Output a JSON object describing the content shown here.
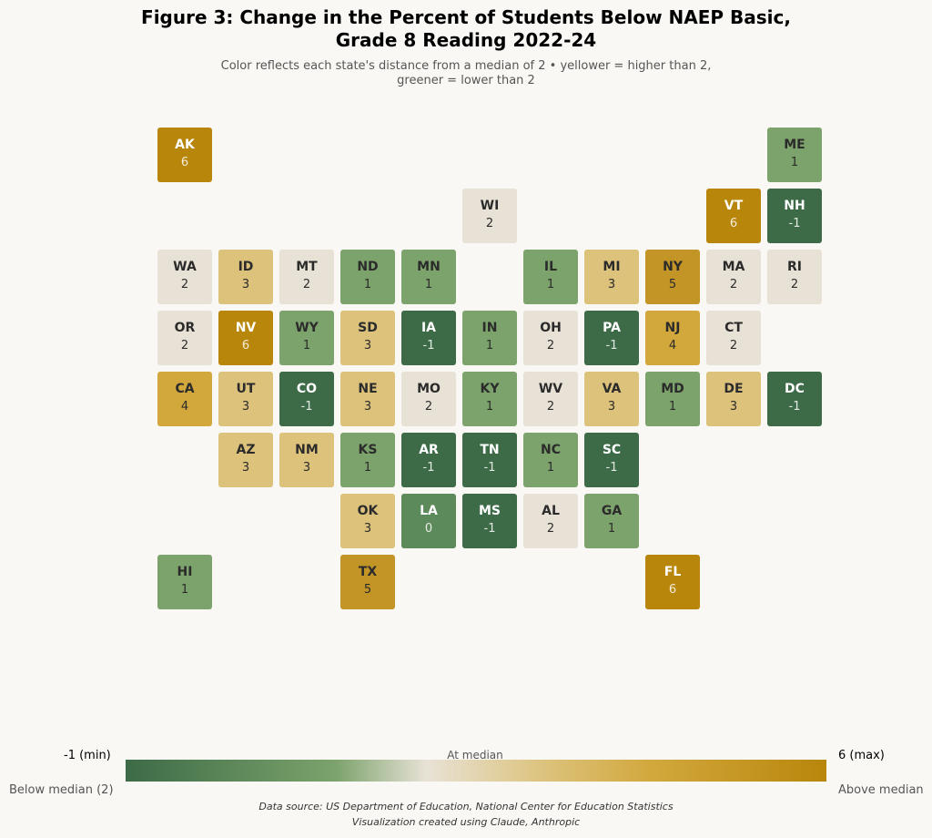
{
  "title_line1": "Figure 3: Change in the Percent of Students Below NAEP Basic,",
  "title_line2": "Grade 8 Reading 2022-24",
  "subtitle_line1": "Color reflects each state's distance from a median of 2  •  yellower = higher than 2,",
  "subtitle_line2": "greener = lower than 2",
  "legend": {
    "min_label": "-1 (min)",
    "max_label": "6 (max)",
    "mid_label": "At median",
    "below_label": "Below median (2)",
    "above_label": "Above median"
  },
  "footer_line1": "Data source: US Department of Education, National Center for Education Statistics",
  "footer_line2": "Visualization created using Claude, Anthropic",
  "chart_data": {
    "type": "heatmap",
    "layout": "tile-grid map of US states",
    "median": 2,
    "min": -1,
    "max": 6,
    "color_scale": {
      "low": "#3d6b47",
      "mid": "#e8e2d6",
      "high": "#b8860b"
    },
    "states": [
      {
        "abbr": "AK",
        "value": 6,
        "row": 0,
        "col": 0
      },
      {
        "abbr": "ME",
        "value": 1,
        "row": 0,
        "col": 10
      },
      {
        "abbr": "WI",
        "value": 2,
        "row": 1,
        "col": 5
      },
      {
        "abbr": "VT",
        "value": 6,
        "row": 1,
        "col": 9
      },
      {
        "abbr": "NH",
        "value": -1,
        "row": 1,
        "col": 10
      },
      {
        "abbr": "WA",
        "value": 2,
        "row": 2,
        "col": 0
      },
      {
        "abbr": "ID",
        "value": 3,
        "row": 2,
        "col": 1
      },
      {
        "abbr": "MT",
        "value": 2,
        "row": 2,
        "col": 2
      },
      {
        "abbr": "ND",
        "value": 1,
        "row": 2,
        "col": 3
      },
      {
        "abbr": "MN",
        "value": 1,
        "row": 2,
        "col": 4
      },
      {
        "abbr": "IL",
        "value": 1,
        "row": 2,
        "col": 6
      },
      {
        "abbr": "MI",
        "value": 3,
        "row": 2,
        "col": 7
      },
      {
        "abbr": "NY",
        "value": 5,
        "row": 2,
        "col": 8
      },
      {
        "abbr": "MA",
        "value": 2,
        "row": 2,
        "col": 9
      },
      {
        "abbr": "RI",
        "value": 2,
        "row": 2,
        "col": 10
      },
      {
        "abbr": "OR",
        "value": 2,
        "row": 3,
        "col": 0
      },
      {
        "abbr": "NV",
        "value": 6,
        "row": 3,
        "col": 1
      },
      {
        "abbr": "WY",
        "value": 1,
        "row": 3,
        "col": 2
      },
      {
        "abbr": "SD",
        "value": 3,
        "row": 3,
        "col": 3
      },
      {
        "abbr": "IA",
        "value": -1,
        "row": 3,
        "col": 4
      },
      {
        "abbr": "IN",
        "value": 1,
        "row": 3,
        "col": 5
      },
      {
        "abbr": "OH",
        "value": 2,
        "row": 3,
        "col": 6
      },
      {
        "abbr": "PA",
        "value": -1,
        "row": 3,
        "col": 7
      },
      {
        "abbr": "NJ",
        "value": 4,
        "row": 3,
        "col": 8
      },
      {
        "abbr": "CT",
        "value": 2,
        "row": 3,
        "col": 9
      },
      {
        "abbr": "CA",
        "value": 4,
        "row": 4,
        "col": 0
      },
      {
        "abbr": "UT",
        "value": 3,
        "row": 4,
        "col": 1
      },
      {
        "abbr": "CO",
        "value": -1,
        "row": 4,
        "col": 2
      },
      {
        "abbr": "NE",
        "value": 3,
        "row": 4,
        "col": 3
      },
      {
        "abbr": "MO",
        "value": 2,
        "row": 4,
        "col": 4
      },
      {
        "abbr": "KY",
        "value": 1,
        "row": 4,
        "col": 5
      },
      {
        "abbr": "WV",
        "value": 2,
        "row": 4,
        "col": 6
      },
      {
        "abbr": "VA",
        "value": 3,
        "row": 4,
        "col": 7
      },
      {
        "abbr": "MD",
        "value": 1,
        "row": 4,
        "col": 8
      },
      {
        "abbr": "DE",
        "value": 3,
        "row": 4,
        "col": 9
      },
      {
        "abbr": "DC",
        "value": -1,
        "row": 4,
        "col": 10
      },
      {
        "abbr": "AZ",
        "value": 3,
        "row": 5,
        "col": 1
      },
      {
        "abbr": "NM",
        "value": 3,
        "row": 5,
        "col": 2
      },
      {
        "abbr": "KS",
        "value": 1,
        "row": 5,
        "col": 3
      },
      {
        "abbr": "AR",
        "value": -1,
        "row": 5,
        "col": 4
      },
      {
        "abbr": "TN",
        "value": -1,
        "row": 5,
        "col": 5
      },
      {
        "abbr": "NC",
        "value": 1,
        "row": 5,
        "col": 6
      },
      {
        "abbr": "SC",
        "value": -1,
        "row": 5,
        "col": 7
      },
      {
        "abbr": "OK",
        "value": 3,
        "row": 6,
        "col": 3
      },
      {
        "abbr": "LA",
        "value": 0,
        "row": 6,
        "col": 4
      },
      {
        "abbr": "MS",
        "value": -1,
        "row": 6,
        "col": 5
      },
      {
        "abbr": "AL",
        "value": 2,
        "row": 6,
        "col": 6
      },
      {
        "abbr": "GA",
        "value": 1,
        "row": 6,
        "col": 7
      },
      {
        "abbr": "HI",
        "value": 1,
        "row": 7,
        "col": 0
      },
      {
        "abbr": "TX",
        "value": 5,
        "row": 7,
        "col": 3
      },
      {
        "abbr": "FL",
        "value": 6,
        "row": 7,
        "col": 8
      }
    ]
  }
}
